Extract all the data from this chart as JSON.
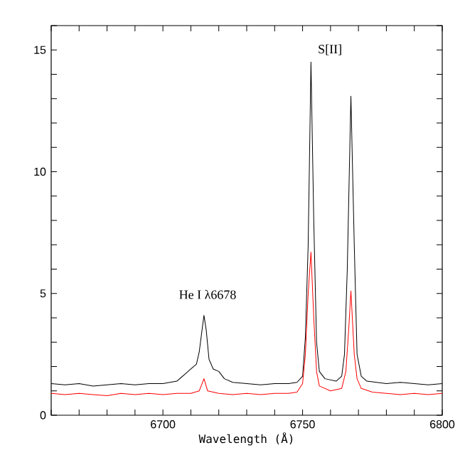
{
  "chart_data": {
    "type": "line",
    "xlabel": "Wavelength (Å)",
    "xlim": [
      6660,
      6800
    ],
    "xticks": [
      {
        "value": 6660,
        "label": null
      },
      {
        "value": 6670,
        "label": null
      },
      {
        "value": 6680,
        "label": null
      },
      {
        "value": 6690,
        "label": null
      },
      6700,
      {
        "value": 6710,
        "label": null
      },
      {
        "value": 6720,
        "label": null
      },
      {
        "value": 6730,
        "label": null
      },
      {
        "value": 6740,
        "label": null
      },
      6750,
      {
        "value": 6760,
        "label": null
      },
      {
        "value": 6770,
        "label": null
      },
      {
        "value": 6780,
        "label": null
      },
      {
        "value": 6790,
        "label": null
      },
      6800
    ],
    "ylim": [
      0,
      16
    ],
    "yticks": [
      0,
      {
        "value": 1,
        "label": null
      },
      {
        "value": 2,
        "label": null
      },
      {
        "value": 3,
        "label": null
      },
      {
        "value": 4,
        "label": null
      },
      5,
      {
        "value": 6,
        "label": null
      },
      {
        "value": 7,
        "label": null
      },
      {
        "value": 8,
        "label": null
      },
      {
        "value": 9,
        "label": null
      },
      10,
      {
        "value": 11,
        "label": null
      },
      {
        "value": 12,
        "label": null
      },
      {
        "value": 13,
        "label": null
      },
      {
        "value": 14,
        "label": null
      },
      15,
      {
        "value": 16,
        "label": null
      }
    ],
    "series": [
      {
        "color": "#000000",
        "x": [
          6660,
          6665,
          6670,
          6675,
          6680,
          6685,
          6690,
          6695,
          6700,
          6705,
          6708,
          6710,
          6712,
          6713,
          6714,
          6714.7,
          6715.5,
          6716.5,
          6718,
          6720,
          6722,
          6725,
          6730,
          6735,
          6740,
          6745,
          6748,
          6750,
          6751,
          6752,
          6753,
          6754,
          6755,
          6756,
          6758,
          6762,
          6764,
          6765,
          6766,
          6767.3,
          6768.5,
          6769.5,
          6771,
          6773,
          6780,
          6785,
          6790,
          6795,
          6800
        ],
        "values": [
          1.3,
          1.25,
          1.3,
          1.2,
          1.25,
          1.3,
          1.25,
          1.3,
          1.3,
          1.4,
          1.7,
          1.9,
          2.1,
          2.6,
          3.5,
          4.1,
          3.5,
          2.3,
          1.9,
          1.8,
          1.5,
          1.35,
          1.3,
          1.25,
          1.3,
          1.3,
          1.35,
          1.6,
          3.2,
          7,
          14.5,
          8,
          3,
          1.8,
          1.5,
          1.4,
          1.6,
          2.5,
          6,
          13.1,
          7,
          2.5,
          1.6,
          1.4,
          1.3,
          1.35,
          1.3,
          1.25,
          1.3
        ]
      },
      {
        "color": "#ff0000",
        "x": [
          6660,
          6665,
          6670,
          6675,
          6680,
          6685,
          6690,
          6695,
          6700,
          6705,
          6710,
          6713,
          6714.7,
          6716,
          6720,
          6725,
          6730,
          6735,
          6740,
          6745,
          6748,
          6750,
          6751,
          6752,
          6753,
          6754,
          6755,
          6756,
          6760,
          6764,
          6765.5,
          6766.5,
          6767.3,
          6768.5,
          6769.5,
          6771,
          6775,
          6780,
          6785,
          6790,
          6795,
          6800
        ],
        "values": [
          0.9,
          0.85,
          0.9,
          0.85,
          0.8,
          0.9,
          0.85,
          0.9,
          0.85,
          0.9,
          0.9,
          1.0,
          1.5,
          1.0,
          0.9,
          0.85,
          0.9,
          0.85,
          0.9,
          0.9,
          0.95,
          1.3,
          2.5,
          5,
          6.7,
          4,
          1.8,
          1.2,
          1.0,
          1.1,
          1.8,
          3.5,
          5.1,
          2.5,
          1.5,
          1.1,
          0.95,
          0.9,
          0.85,
          0.9,
          0.85,
          0.9
        ]
      }
    ],
    "annotations": [
      "He I λ6678",
      "S[II]"
    ]
  }
}
